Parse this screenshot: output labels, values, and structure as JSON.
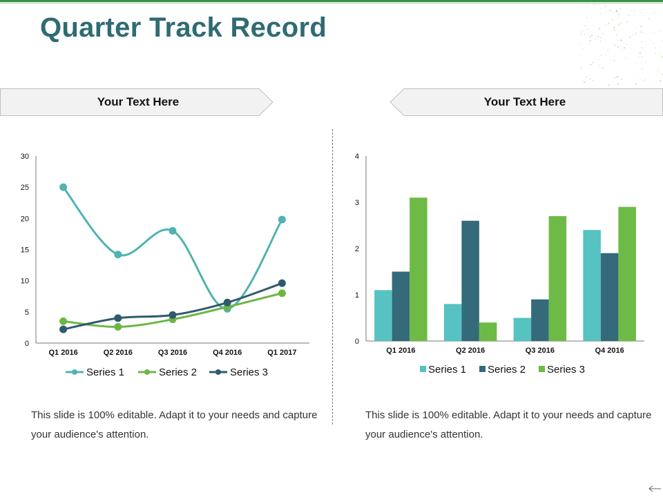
{
  "slide": {
    "title": "Quarter Track Record",
    "banners": [
      "Your Text Here",
      "Your Text Here"
    ],
    "body_texts": [
      "This slide is 100% editable. Adapt it to your needs and capture your audience's attention.",
      "This slide is 100% editable. Adapt it to your needs and capture your audience's attention."
    ]
  },
  "colors": {
    "title": "#2f6b73",
    "accent_green": "#3c8f47",
    "series1_line": "#4fb3b2",
    "series2_line": "#6cb744",
    "series3_line": "#2f5a6e",
    "bar_series1": "#56c2c2",
    "bar_series2": "#356a7a",
    "bar_series3": "#6dbb46"
  },
  "chart_data": [
    {
      "type": "line",
      "categories": [
        "Q1 2016",
        "Q2 2016",
        "Q3 2016",
        "Q4 2016",
        "Q1 2017"
      ],
      "series": [
        {
          "name": "Series 1",
          "values": [
            25,
            14.2,
            18,
            5.5,
            19.8
          ]
        },
        {
          "name": "Series 2",
          "values": [
            3.5,
            2.6,
            3.8,
            5.8,
            8
          ]
        },
        {
          "name": "Series 3",
          "values": [
            2.2,
            4,
            4.5,
            6.5,
            9.6
          ]
        }
      ],
      "yticks": [
        "0",
        "5",
        "10",
        "15",
        "20",
        "25",
        "30"
      ],
      "ylim": [
        0,
        30
      ],
      "grid": false,
      "legend": "bottom"
    },
    {
      "type": "bar",
      "categories": [
        "Q1 2016",
        "Q2 2016",
        "Q3 2016",
        "Q4 2016"
      ],
      "series": [
        {
          "name": "Series 1",
          "values": [
            1.1,
            0.8,
            0.5,
            2.4
          ]
        },
        {
          "name": "Series 2",
          "values": [
            1.5,
            2.6,
            0.9,
            1.9
          ]
        },
        {
          "name": "Series 3",
          "values": [
            3.1,
            0.4,
            2.7,
            2.9
          ]
        }
      ],
      "yticks": [
        "0",
        "1",
        "2",
        "3",
        "4"
      ],
      "ylim": [
        0,
        4
      ],
      "grid": false,
      "legend": "bottom"
    }
  ]
}
